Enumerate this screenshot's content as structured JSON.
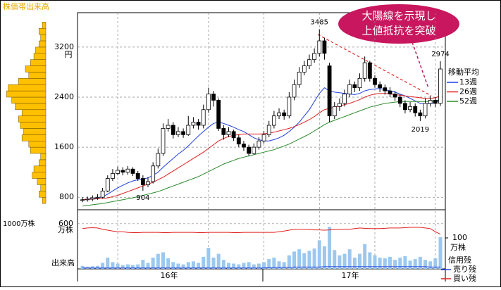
{
  "chart_data": {
    "type": "candlestick",
    "profile_title": "株価帯出来高",
    "price_unit": "円",
    "ylim": [
      600,
      3750
    ],
    "yticks": [
      800,
      1600,
      2400,
      3200
    ],
    "grid": true,
    "candles": [
      [
        750,
        800,
        720,
        760
      ],
      [
        760,
        810,
        730,
        770
      ],
      [
        770,
        830,
        740,
        790
      ],
      [
        790,
        850,
        760,
        800
      ],
      [
        800,
        950,
        780,
        900
      ],
      [
        900,
        1150,
        880,
        1100
      ],
      [
        1100,
        1250,
        1060,
        1180
      ],
      [
        1180,
        1290,
        1150,
        1230
      ],
      [
        1230,
        1280,
        1150,
        1200
      ],
      [
        1200,
        1300,
        1160,
        1250
      ],
      [
        1250,
        1280,
        1140,
        1180
      ],
      [
        1180,
        1220,
        1060,
        1100
      ],
      [
        1100,
        1150,
        904,
        1000
      ],
      [
        1000,
        1120,
        960,
        1050
      ],
      [
        1050,
        1360,
        1020,
        1300
      ],
      [
        1300,
        1580,
        1260,
        1500
      ],
      [
        1500,
        1980,
        1460,
        1900
      ],
      [
        1900,
        2050,
        1850,
        1950
      ],
      [
        1950,
        2000,
        1740,
        1800
      ],
      [
        1800,
        1920,
        1760,
        1850
      ],
      [
        1850,
        1900,
        1750,
        1800
      ],
      [
        1800,
        2100,
        1780,
        1950
      ],
      [
        1950,
        2080,
        1900,
        2000
      ],
      [
        2000,
        2050,
        1880,
        1950
      ],
      [
        1950,
        2280,
        1900,
        2200
      ],
      [
        2200,
        2550,
        2150,
        2450
      ],
      [
        2450,
        2500,
        2250,
        2350
      ],
      [
        2350,
        2380,
        1860,
        1900
      ],
      [
        1900,
        1950,
        1720,
        1800
      ],
      [
        1800,
        1920,
        1760,
        1850
      ],
      [
        1850,
        1880,
        1700,
        1750
      ],
      [
        1750,
        1800,
        1600,
        1650
      ],
      [
        1650,
        1700,
        1540,
        1600
      ],
      [
        1600,
        1640,
        1460,
        1500
      ],
      [
        1500,
        1660,
        1480,
        1600
      ],
      [
        1600,
        1760,
        1560,
        1700
      ],
      [
        1700,
        1860,
        1660,
        1800
      ],
      [
        1800,
        2020,
        1760,
        1950
      ],
      [
        1950,
        2180,
        1900,
        2100
      ],
      [
        2100,
        2220,
        2050,
        2150
      ],
      [
        2150,
        2200,
        2040,
        2100
      ],
      [
        2100,
        2480,
        2060,
        2400
      ],
      [
        2400,
        2680,
        2350,
        2600
      ],
      [
        2600,
        2880,
        2550,
        2800
      ],
      [
        2800,
        2980,
        2750,
        2900
      ],
      [
        2900,
        3080,
        2850,
        3000
      ],
      [
        3000,
        3180,
        2950,
        3100
      ],
      [
        3100,
        3485,
        3050,
        3300
      ],
      [
        3300,
        3350,
        3000,
        3100
      ],
      [
        2900,
        2950,
        2000,
        2100
      ],
      [
        2100,
        2320,
        2050,
        2250
      ],
      [
        2250,
        2380,
        2180,
        2300
      ],
      [
        2300,
        2520,
        2250,
        2450
      ],
      [
        2450,
        2680,
        2400,
        2600
      ],
      [
        2600,
        2650,
        2480,
        2550
      ],
      [
        2550,
        2780,
        2500,
        2700
      ],
      [
        2700,
        3050,
        2650,
        2950
      ],
      [
        2950,
        2980,
        2650,
        2700
      ],
      [
        2700,
        2750,
        2550,
        2600
      ],
      [
        2600,
        2650,
        2480,
        2550
      ],
      [
        2550,
        2600,
        2440,
        2500
      ],
      [
        2500,
        2560,
        2400,
        2450
      ],
      [
        2450,
        2500,
        2340,
        2400
      ],
      [
        2400,
        2450,
        2240,
        2300
      ],
      [
        2300,
        2350,
        2140,
        2200
      ],
      [
        2200,
        2320,
        2160,
        2250
      ],
      [
        2250,
        2300,
        2090,
        2150
      ],
      [
        2150,
        2200,
        2019,
        2100
      ],
      [
        2100,
        2380,
        2060,
        2300
      ],
      [
        2300,
        2420,
        2250,
        2350
      ],
      [
        2350,
        2400,
        2240,
        2300
      ],
      [
        2300,
        2974,
        2260,
        2850
      ]
    ],
    "ma_title": "移動平均",
    "series": [
      {
        "name": "13週",
        "color": "#1f3fe0",
        "values": [
          760,
          770,
          780,
          790,
          810,
          850,
          900,
          950,
          990,
          1030,
          1060,
          1080,
          1090,
          1110,
          1150,
          1200,
          1280,
          1350,
          1420,
          1490,
          1550,
          1620,
          1700,
          1780,
          1850,
          1920,
          1980,
          2000,
          1980,
          1950,
          1920,
          1880,
          1850,
          1800,
          1750,
          1720,
          1700,
          1700,
          1720,
          1750,
          1790,
          1850,
          1920,
          2000,
          2100,
          2200,
          2330,
          2460,
          2550,
          2500,
          2480,
          2470,
          2460,
          2450,
          2440,
          2460,
          2500,
          2520,
          2530,
          2540,
          2520,
          2500,
          2480,
          2450,
          2420,
          2380,
          2340,
          2300,
          2290,
          2300,
          2310,
          2360
        ]
      },
      {
        "name": "26週",
        "color": "#e02020",
        "values": [
          760,
          765,
          770,
          775,
          780,
          790,
          810,
          830,
          860,
          890,
          920,
          950,
          980,
          1010,
          1040,
          1080,
          1120,
          1170,
          1220,
          1270,
          1320,
          1370,
          1420,
          1470,
          1520,
          1580,
          1640,
          1700,
          1740,
          1770,
          1790,
          1800,
          1810,
          1810,
          1810,
          1810,
          1815,
          1825,
          1840,
          1860,
          1880,
          1900,
          1930,
          1960,
          2000,
          2040,
          2090,
          2150,
          2200,
          2220,
          2240,
          2260,
          2280,
          2300,
          2330,
          2360,
          2400,
          2430,
          2450,
          2460,
          2460,
          2450,
          2440,
          2430,
          2420,
          2410,
          2400,
          2390,
          2380,
          2380,
          2390,
          2420
        ]
      },
      {
        "name": "52週",
        "color": "#2a8a2a",
        "values": [
          660,
          670,
          680,
          690,
          700,
          715,
          730,
          745,
          760,
          775,
          790,
          810,
          830,
          850,
          870,
          890,
          920,
          950,
          980,
          1010,
          1040,
          1070,
          1100,
          1130,
          1170,
          1210,
          1250,
          1290,
          1330,
          1360,
          1390,
          1420,
          1440,
          1460,
          1480,
          1500,
          1520,
          1540,
          1560,
          1590,
          1620,
          1650,
          1690,
          1730,
          1770,
          1810,
          1860,
          1910,
          1960,
          2000,
          2030,
          2060,
          2090,
          2120,
          2150,
          2180,
          2210,
          2240,
          2260,
          2280,
          2300,
          2310,
          2320,
          2330,
          2330,
          2330,
          2330,
          2330,
          2330,
          2330,
          2340,
          2360
        ]
      }
    ],
    "annotation_points": [
      "3485",
      "904",
      "2019",
      "2974"
    ],
    "callout": [
      "大陽線を示現し",
      "上値抵抗を突破"
    ],
    "volume": {
      "title": "出来高",
      "unit": "万株",
      "color": "#9cc8ee",
      "ylim": [
        0,
        720
      ],
      "yticks": [
        600
      ],
      "values": [
        40,
        30,
        35,
        40,
        80,
        150,
        90,
        70,
        50,
        60,
        50,
        60,
        120,
        80,
        150,
        200,
        220,
        140,
        90,
        70,
        60,
        90,
        100,
        80,
        160,
        280,
        150,
        200,
        120,
        80,
        70,
        60,
        80,
        90,
        60,
        70,
        90,
        130,
        150,
        100,
        90,
        180,
        230,
        260,
        210,
        240,
        270,
        380,
        300,
        560,
        250,
        180,
        200,
        260,
        150,
        200,
        330,
        220,
        180,
        150,
        140,
        160,
        120,
        150,
        170,
        110,
        130,
        160,
        120,
        100,
        140,
        420
      ]
    },
    "margin": {
      "title": "信用残",
      "unit": "万株",
      "y2lim": [
        0,
        175
      ],
      "y2ticks": [
        100
      ],
      "series": [
        {
          "name": "売り残",
          "color": "#1f3fe0",
          "values": [
            3,
            3,
            3,
            3,
            3,
            3,
            3,
            3,
            3,
            3,
            3,
            3,
            3,
            3,
            3,
            3,
            3,
            3,
            3,
            3,
            3,
            3,
            3,
            3,
            3,
            3,
            3,
            3,
            3,
            3,
            3,
            3,
            3,
            3,
            3,
            3,
            3,
            4,
            4,
            4,
            5,
            5,
            6,
            6,
            6,
            6,
            6,
            6,
            7,
            7,
            7,
            7,
            7,
            7,
            7,
            7,
            7,
            7,
            7,
            7,
            7,
            7,
            7,
            7,
            7,
            7,
            7,
            7,
            7,
            6,
            6,
            6
          ]
        },
        {
          "name": "買い残",
          "color": "#e02020",
          "values": [
            130,
            132,
            133,
            132,
            128,
            125,
            122,
            120,
            120,
            118,
            117,
            117,
            118,
            118,
            118,
            118,
            117,
            117,
            118,
            118,
            118,
            118,
            118,
            117,
            117,
            118,
            118,
            118,
            118,
            118,
            117,
            117,
            118,
            118,
            118,
            118,
            118,
            118,
            118,
            120,
            122,
            125,
            128,
            128,
            128,
            127,
            126,
            126,
            125,
            126,
            127,
            128,
            128,
            128,
            130,
            132,
            131,
            130,
            130,
            130,
            131,
            132,
            132,
            132,
            133,
            134,
            134,
            134,
            132,
            130,
            120,
            112
          ]
        }
      ]
    },
    "profile": {
      "unit_label": "1000万株",
      "color": "#ffc000",
      "xlim": [
        0,
        1200
      ],
      "bins": [
        700,
        800,
        900,
        1000,
        1100,
        1200,
        1300,
        1400,
        1500,
        1600,
        1700,
        1800,
        1900,
        2000,
        2100,
        2200,
        2300,
        2400,
        2500,
        2600,
        2700,
        2800,
        2900,
        3000,
        3100,
        3200,
        3300,
        3400,
        3500,
        3600
      ],
      "values": [
        100,
        200,
        150,
        250,
        400,
        350,
        200,
        150,
        450,
        500,
        700,
        650,
        750,
        800,
        700,
        900,
        1000,
        1150,
        1100,
        800,
        500,
        600,
        450,
        350,
        300,
        200,
        150,
        200,
        100
      ]
    },
    "periods": [
      "16年",
      "17年"
    ]
  }
}
